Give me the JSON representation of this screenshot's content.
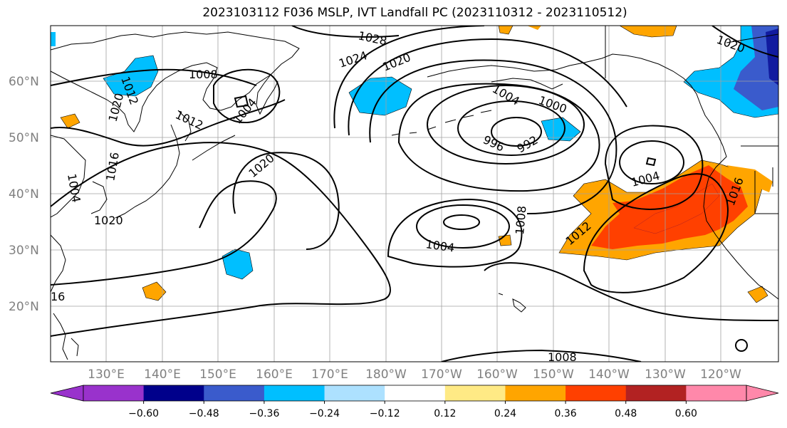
{
  "title": "2023103112 F036 MSLP, IVT Landfall PC (2023110312 - 2023110512)",
  "lat_labels": [
    "60°N",
    "50°N",
    "40°N",
    "30°N",
    "20°N"
  ],
  "lon_labels": [
    "130°E",
    "140°E",
    "150°E",
    "160°E",
    "170°E",
    "180°W",
    "170°W",
    "160°W",
    "150°W",
    "140°W",
    "130°W",
    "120°W"
  ],
  "contour_labels": [
    "1028",
    "1024",
    "1020",
    "1008",
    "1004",
    "1012",
    "1020",
    "1020",
    "1004",
    "1020",
    "1016",
    "1012",
    "1000",
    "996",
    "992",
    "1004",
    "1008",
    "1004",
    "1012",
    "1016",
    "1008",
    "1020",
    "16"
  ],
  "colorbar": {
    "ticks": [
      "−0.60",
      "−0.48",
      "−0.36",
      "−0.24",
      "−0.12",
      "0.12",
      "0.24",
      "0.36",
      "0.48",
      "0.60"
    ],
    "colors": [
      "#9932CC",
      "#00008B",
      "#3A5BCC",
      "#00BFFF",
      "#ADE1FF",
      "#FFFFFF",
      "#FFEA85",
      "#FFA500",
      "#FF4000",
      "#B22222",
      "#FF88AA"
    ]
  }
}
